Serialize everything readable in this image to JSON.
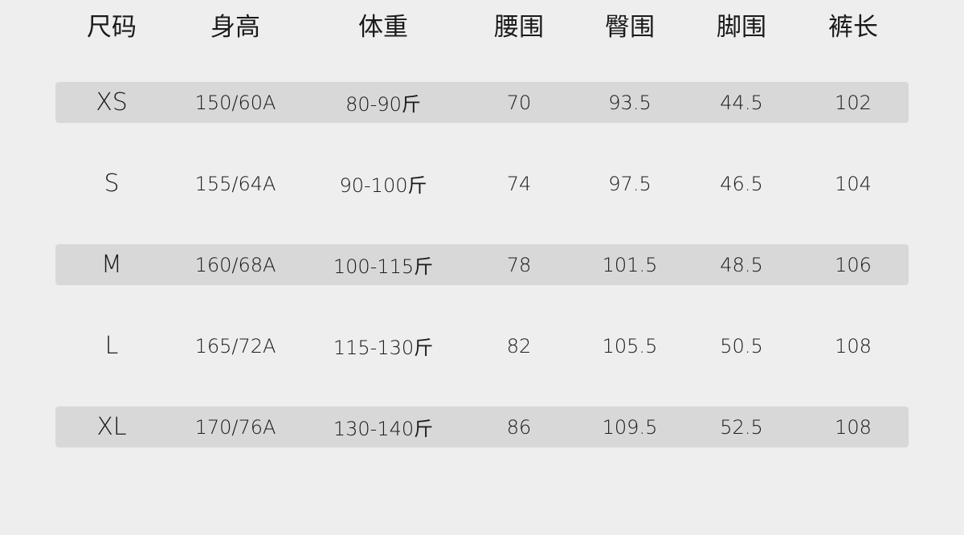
{
  "headers": [
    "尺码",
    "身高",
    "体重",
    "腰围",
    "臀围",
    "脚围",
    "裤长"
  ],
  "rows": [
    [
      "XS",
      "150/60A",
      "80-90斤",
      "70",
      "93.5",
      "44.5",
      "102"
    ],
    [
      "S",
      "155/64A",
      "90-100斤",
      "74",
      "97.5",
      "46.5",
      "104"
    ],
    [
      "M",
      "160/68A",
      "100-115斤",
      "78",
      "101.5",
      "48.5",
      "106"
    ],
    [
      "L",
      "165/72A",
      "115-130斤",
      "82",
      "105.5",
      "50.5",
      "108"
    ],
    [
      "XL",
      "170/76A",
      "130-140斤",
      "86",
      "109.5",
      "52.5",
      "108"
    ]
  ],
  "colors": {
    "background": "#eeeeee",
    "shaded_row": "#d8d8d8",
    "text": "#1a1a1a"
  }
}
